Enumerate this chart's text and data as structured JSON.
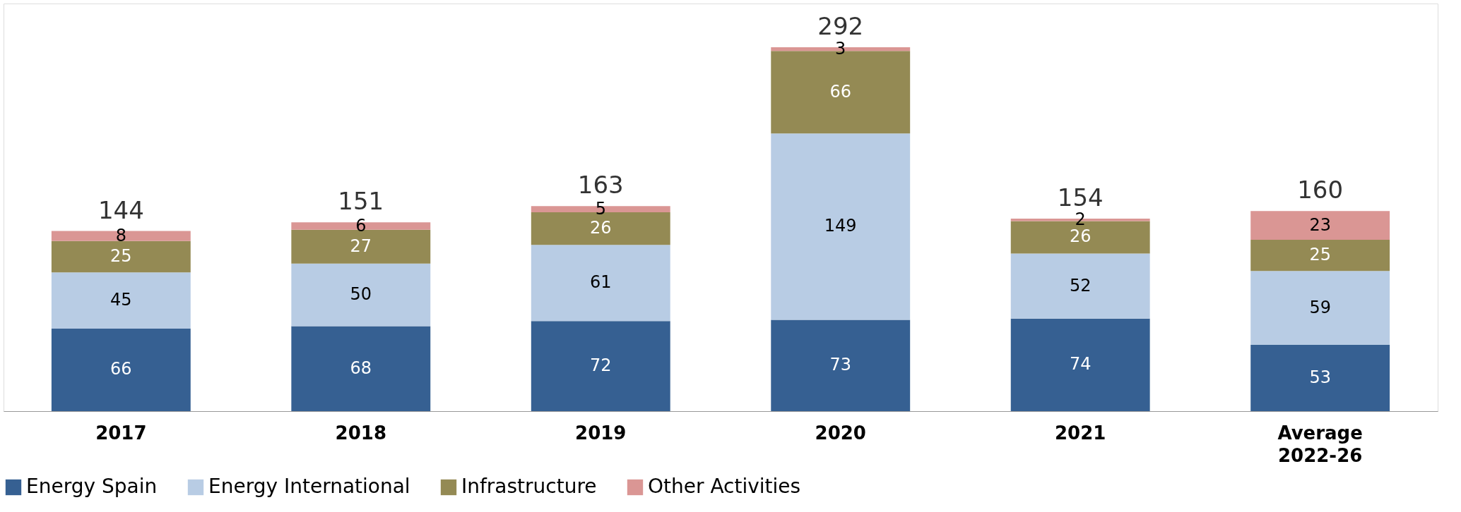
{
  "chart_data": {
    "type": "bar",
    "stacked": true,
    "data_labels": true,
    "legend": "bottom",
    "categories": [
      "2017",
      "2018",
      "2019",
      "2020",
      "2021",
      "Average 2022-26"
    ],
    "series": [
      {
        "name": "Energy Spain",
        "color": "#366092",
        "values": [
          66,
          68,
          72,
          73,
          74,
          53
        ]
      },
      {
        "name": "Energy International",
        "color": "#b8cce4",
        "values": [
          45,
          50,
          61,
          149,
          52,
          59
        ]
      },
      {
        "name": "Infrastructure",
        "color": "#948a54",
        "values": [
          25,
          27,
          26,
          66,
          26,
          25
        ]
      },
      {
        "name": "Other Activities",
        "color": "#da9694",
        "values": [
          8,
          6,
          5,
          3,
          2,
          23
        ]
      }
    ],
    "totals": [
      "144",
      "151",
      "163",
      "292",
      "154",
      "160"
    ]
  }
}
